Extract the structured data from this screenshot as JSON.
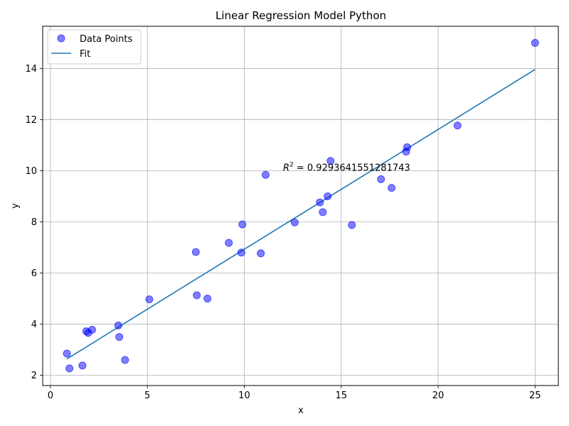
{
  "chart_data": {
    "type": "scatter",
    "title": "Linear Regression Model Python",
    "xlabel": "x",
    "ylabel": "y",
    "xlim": [
      -0.4,
      26.2
    ],
    "ylim": [
      1.6,
      15.65
    ],
    "xticks": [
      0,
      5,
      10,
      15,
      20,
      25
    ],
    "yticks": [
      2,
      4,
      6,
      8,
      10,
      12,
      14
    ],
    "xtick_labels": [
      "0",
      "5",
      "10",
      "15",
      "20",
      "25"
    ],
    "ytick_labels": [
      "2",
      "4",
      "6",
      "8",
      "10",
      "12",
      "14"
    ],
    "grid": true,
    "legend_position": "top-left",
    "legend_entries": [
      "Data Points",
      "Fit"
    ],
    "annotation": {
      "prefix_base": "R",
      "prefix_sup": "2",
      "text": " = 0.9293641551281743",
      "x": 12.0,
      "y": 10.0
    },
    "series": [
      {
        "name": "Data Points",
        "kind": "scatter",
        "color": "#0000ff",
        "alpha": 0.5,
        "points": [
          [
            0.85,
            2.85
          ],
          [
            0.98,
            2.27
          ],
          [
            1.65,
            2.38
          ],
          [
            1.85,
            3.72
          ],
          [
            1.95,
            3.66
          ],
          [
            2.15,
            3.78
          ],
          [
            3.5,
            3.95
          ],
          [
            3.55,
            3.5
          ],
          [
            3.85,
            2.6
          ],
          [
            5.1,
            4.97
          ],
          [
            7.5,
            6.82
          ],
          [
            7.55,
            5.13
          ],
          [
            8.1,
            5.0
          ],
          [
            9.2,
            7.18
          ],
          [
            9.85,
            6.8
          ],
          [
            9.9,
            7.9
          ],
          [
            10.85,
            6.77
          ],
          [
            11.1,
            9.84
          ],
          [
            12.6,
            7.98
          ],
          [
            13.9,
            8.76
          ],
          [
            14.05,
            8.38
          ],
          [
            14.3,
            9.0
          ],
          [
            14.45,
            10.38
          ],
          [
            15.55,
            7.88
          ],
          [
            17.05,
            9.67
          ],
          [
            17.6,
            9.33
          ],
          [
            18.35,
            10.75
          ],
          [
            18.4,
            10.92
          ],
          [
            21.0,
            11.77
          ],
          [
            25.0,
            15.0
          ]
        ]
      },
      {
        "name": "Fit",
        "kind": "line",
        "color": "#1f77b4",
        "points": [
          [
            0.85,
            2.64
          ],
          [
            25.0,
            13.96
          ]
        ]
      }
    ]
  }
}
